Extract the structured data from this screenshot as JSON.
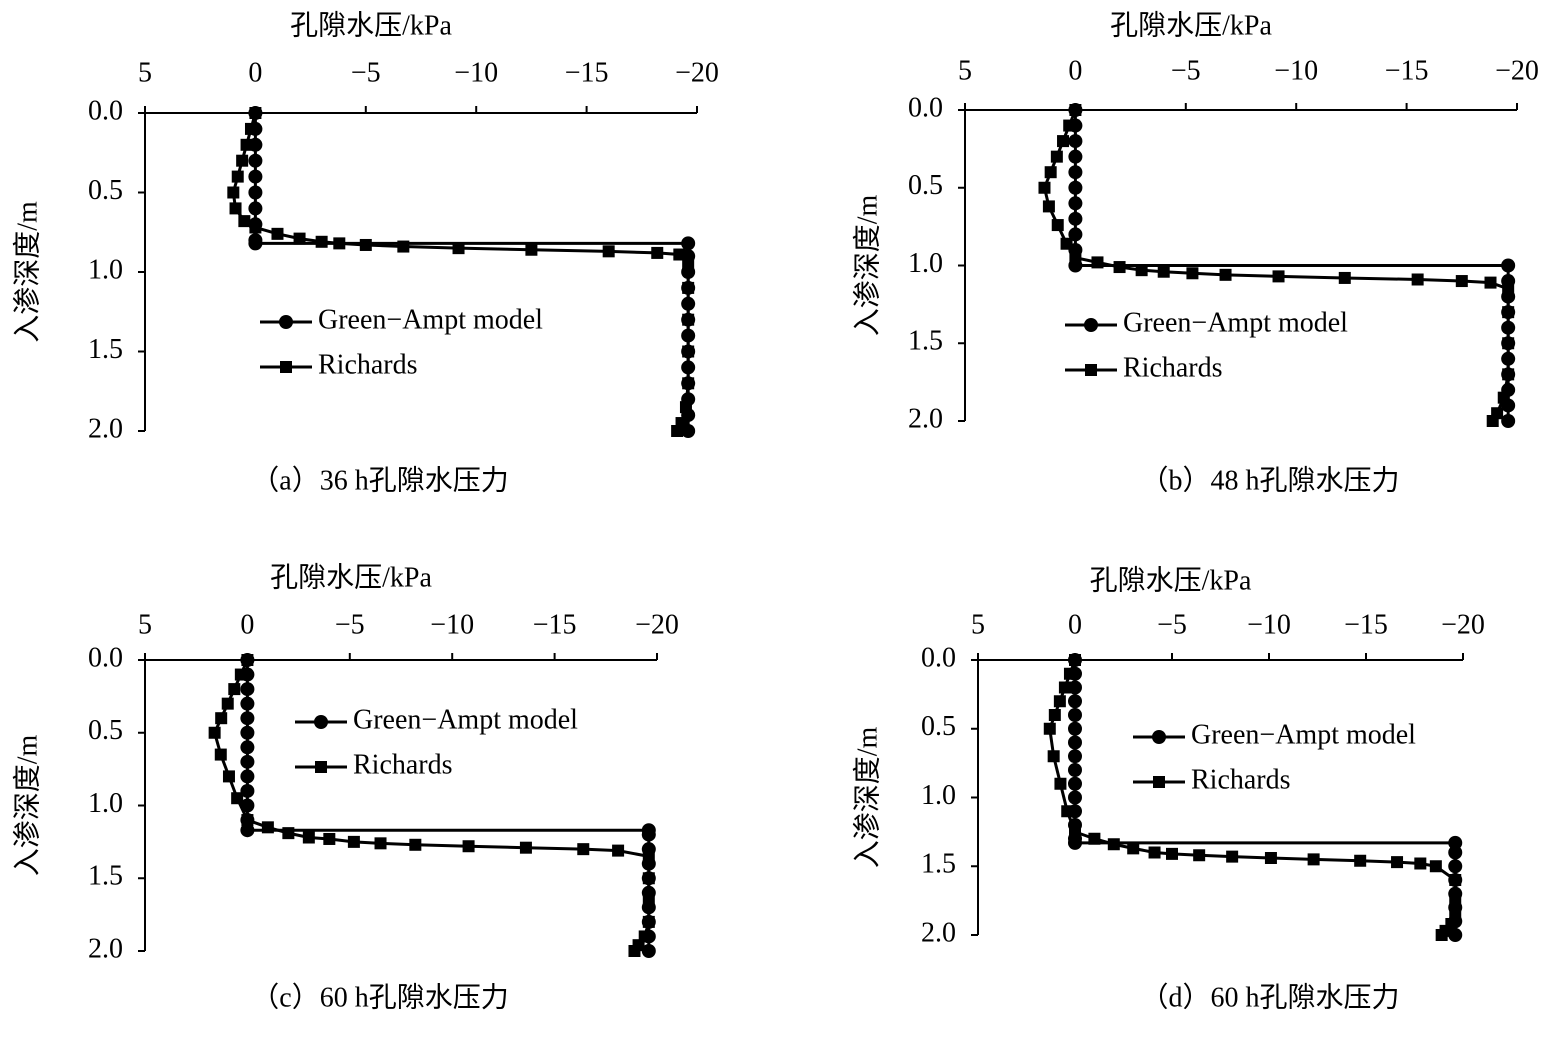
{
  "chart_data": [
    {
      "type": "line",
      "title": "孔隙水压/kPa",
      "y_label": "入渗深度/m",
      "caption": "（a）36 h孔隙水压力",
      "xlim": [
        5,
        -20
      ],
      "ylim": [
        0,
        2
      ],
      "xticks": [
        5,
        0,
        {
          "value": -5,
          "label": "−5"
        },
        {
          "value": -10,
          "label": "−10"
        },
        {
          "value": -15,
          "label": "−15"
        },
        {
          "value": -20,
          "label": "−20"
        }
      ],
      "yticks": [
        {
          "value": 0,
          "label": "0.0"
        },
        0.5,
        {
          "value": 1,
          "label": "1.0"
        },
        1.5,
        {
          "value": 2,
          "label": "2.0"
        }
      ],
      "series": [
        {
          "name": "Green−Ampt model",
          "color": "#000000",
          "marker": "circle",
          "x": [
            0,
            0,
            0,
            0,
            0,
            0,
            0,
            0,
            0,
            0,
            -19.6,
            -19.6,
            -19.6,
            -19.6,
            -19.6,
            -19.6,
            -19.6,
            -19.6,
            -19.6,
            -19.6,
            -19.6,
            -19.6,
            -19.6
          ],
          "y": [
            0,
            0.1,
            0.2,
            0.3,
            0.4,
            0.5,
            0.6,
            0.7,
            0.8,
            0.82,
            0.82,
            0.9,
            1.0,
            1.1,
            1.2,
            1.3,
            1.4,
            1.5,
            1.6,
            1.7,
            1.8,
            1.9,
            2.0
          ]
        },
        {
          "name": "Richards",
          "color": "#000000",
          "marker": "square",
          "x": [
            0,
            0.2,
            0.4,
            0.6,
            0.8,
            1.0,
            0.9,
            0.5,
            0,
            -1,
            -2,
            -3,
            -3.8,
            -5,
            -6.7,
            -9.2,
            -12.5,
            -16,
            -18.2,
            -19.2,
            -19.6,
            -19.6,
            -19.6,
            -19.6,
            -19.6,
            -19.5,
            -19.3,
            -19.1
          ],
          "y": [
            0,
            0.1,
            0.2,
            0.3,
            0.4,
            0.5,
            0.6,
            0.68,
            0.72,
            0.76,
            0.79,
            0.81,
            0.82,
            0.83,
            0.84,
            0.85,
            0.86,
            0.87,
            0.88,
            0.89,
            0.95,
            1.1,
            1.3,
            1.5,
            1.7,
            1.85,
            1.95,
            2.0
          ]
        }
      ]
    },
    {
      "type": "line",
      "title": "孔隙水压/kPa",
      "y_label": "入渗深度/m",
      "caption": "（b）48 h孔隙水压力",
      "xlim": [
        5,
        -20
      ],
      "ylim": [
        0,
        2
      ],
      "xticks": [
        5,
        0,
        {
          "value": -5,
          "label": "−5"
        },
        {
          "value": -10,
          "label": "−10"
        },
        {
          "value": -15,
          "label": "−15"
        },
        {
          "value": -20,
          "label": "−20"
        }
      ],
      "yticks": [
        {
          "value": 0,
          "label": "0.0"
        },
        0.5,
        {
          "value": 1,
          "label": "1.0"
        },
        1.5,
        {
          "value": 2,
          "label": "2.0"
        }
      ],
      "series": [
        {
          "name": "Green−Ampt model",
          "color": "#000000",
          "marker": "circle",
          "x": [
            0,
            0,
            0,
            0,
            0,
            0,
            0,
            0,
            0,
            0,
            0,
            -19.6,
            -19.6,
            -19.6,
            -19.6,
            -19.6,
            -19.6,
            -19.6,
            -19.6,
            -19.6,
            -19.6,
            -19.6
          ],
          "y": [
            0,
            0.1,
            0.2,
            0.3,
            0.4,
            0.5,
            0.6,
            0.7,
            0.8,
            0.9,
            1.0,
            1.0,
            1.1,
            1.2,
            1.3,
            1.4,
            1.5,
            1.6,
            1.7,
            1.8,
            1.9,
            2.0
          ]
        },
        {
          "name": "Richards",
          "color": "#000000",
          "marker": "square",
          "x": [
            0,
            0.28,
            0.56,
            0.84,
            1.12,
            1.4,
            1.2,
            0.8,
            0.4,
            0,
            -1,
            -2,
            -3,
            -4,
            -5.3,
            -6.8,
            -9.2,
            -12.2,
            -15.5,
            -17.5,
            -18.8,
            -19.6,
            -19.6,
            -19.6,
            -19.6,
            -19.4,
            -19.1,
            -18.9
          ],
          "y": [
            0,
            0.1,
            0.2,
            0.3,
            0.4,
            0.5,
            0.62,
            0.74,
            0.86,
            0.95,
            0.98,
            1.01,
            1.03,
            1.04,
            1.05,
            1.06,
            1.07,
            1.08,
            1.09,
            1.1,
            1.11,
            1.15,
            1.3,
            1.5,
            1.7,
            1.85,
            1.95,
            2.0
          ]
        }
      ]
    },
    {
      "type": "line",
      "title": "孔隙水压/kPa",
      "y_label": "入渗深度/m",
      "caption": "（c）60 h孔隙水压力",
      "xlim": [
        5,
        -20
      ],
      "ylim": [
        0,
        2
      ],
      "xticks": [
        5,
        0,
        {
          "value": -5,
          "label": "−5"
        },
        {
          "value": -10,
          "label": "−10"
        },
        {
          "value": -15,
          "label": "−15"
        },
        {
          "value": -20,
          "label": "−20"
        }
      ],
      "yticks": [
        {
          "value": 0,
          "label": "0.0"
        },
        0.5,
        {
          "value": 1,
          "label": "1.0"
        },
        1.5,
        {
          "value": 2,
          "label": "2.0"
        }
      ],
      "series": [
        {
          "name": "Green−Ampt model",
          "color": "#000000",
          "marker": "circle",
          "x": [
            0,
            0,
            0,
            0,
            0,
            0,
            0,
            0,
            0,
            0,
            0,
            0,
            0,
            -19.6,
            -19.6,
            -19.6,
            -19.6,
            -19.6,
            -19.6,
            -19.6,
            -19.6,
            -19.6,
            -19.6
          ],
          "y": [
            0,
            0.1,
            0.2,
            0.3,
            0.4,
            0.5,
            0.6,
            0.7,
            0.8,
            0.9,
            1.0,
            1.1,
            1.17,
            1.17,
            1.2,
            1.3,
            1.4,
            1.5,
            1.6,
            1.7,
            1.8,
            1.9,
            2.0
          ]
        },
        {
          "name": "Richards",
          "color": "#000000",
          "marker": "square",
          "x": [
            0,
            0.32,
            0.64,
            0.96,
            1.28,
            1.6,
            1.3,
            0.9,
            0.5,
            0,
            -1,
            -2,
            -3,
            -4,
            -5.2,
            -6.5,
            -8.2,
            -10.8,
            -13.6,
            -16.4,
            -18.1,
            -19.6,
            -19.6,
            -19.6,
            -19.6,
            -19.4,
            -19.1,
            -18.9
          ],
          "y": [
            0,
            0.1,
            0.2,
            0.3,
            0.4,
            0.5,
            0.65,
            0.8,
            0.95,
            1.1,
            1.15,
            1.19,
            1.22,
            1.23,
            1.25,
            1.26,
            1.27,
            1.28,
            1.29,
            1.3,
            1.31,
            1.35,
            1.5,
            1.65,
            1.8,
            1.9,
            1.96,
            2.0
          ]
        }
      ]
    },
    {
      "type": "line",
      "title": "孔隙水压/kPa",
      "y_label": "入渗深度/m",
      "caption": "（d）60 h孔隙水压力",
      "xlim": [
        5,
        -20
      ],
      "ylim": [
        0,
        2
      ],
      "xticks": [
        5,
        0,
        {
          "value": -5,
          "label": "−5"
        },
        {
          "value": -10,
          "label": "−10"
        },
        {
          "value": -15,
          "label": "−15"
        },
        {
          "value": -20,
          "label": "−20"
        }
      ],
      "yticks": [
        {
          "value": 0,
          "label": "0.0"
        },
        0.5,
        {
          "value": 1,
          "label": "1.0"
        },
        1.5,
        {
          "value": 2,
          "label": "2.0"
        }
      ],
      "series": [
        {
          "name": "Green−Ampt model",
          "color": "#000000",
          "marker": "circle",
          "x": [
            0,
            0,
            0,
            0,
            0,
            0,
            0,
            0,
            0,
            0,
            0,
            0,
            0,
            0,
            0,
            -19.6,
            -19.6,
            -19.6,
            -19.6,
            -19.6,
            -19.6,
            -19.6,
            -19.6
          ],
          "y": [
            0,
            0.1,
            0.2,
            0.3,
            0.4,
            0.5,
            0.6,
            0.7,
            0.8,
            0.9,
            1.0,
            1.1,
            1.2,
            1.3,
            1.33,
            1.33,
            1.4,
            1.5,
            1.6,
            1.7,
            1.8,
            1.9,
            2.0
          ]
        },
        {
          "name": "Richards",
          "color": "#000000",
          "marker": "square",
          "x": [
            0,
            0.26,
            0.52,
            0.78,
            1.04,
            1.3,
            1.1,
            0.75,
            0.4,
            0,
            -1,
            -2,
            -3,
            -4.1,
            -5,
            -6.4,
            -8.1,
            -10.1,
            -12.3,
            -14.7,
            -16.6,
            -17.8,
            -18.6,
            -19.6,
            -19.6,
            -19.6,
            -19.4,
            -19.1,
            -18.9
          ],
          "y": [
            0,
            0.1,
            0.2,
            0.3,
            0.4,
            0.5,
            0.7,
            0.9,
            1.1,
            1.25,
            1.3,
            1.34,
            1.37,
            1.4,
            1.41,
            1.42,
            1.43,
            1.44,
            1.45,
            1.46,
            1.47,
            1.48,
            1.5,
            1.6,
            1.75,
            1.85,
            1.92,
            1.97,
            2.0
          ]
        }
      ]
    }
  ]
}
